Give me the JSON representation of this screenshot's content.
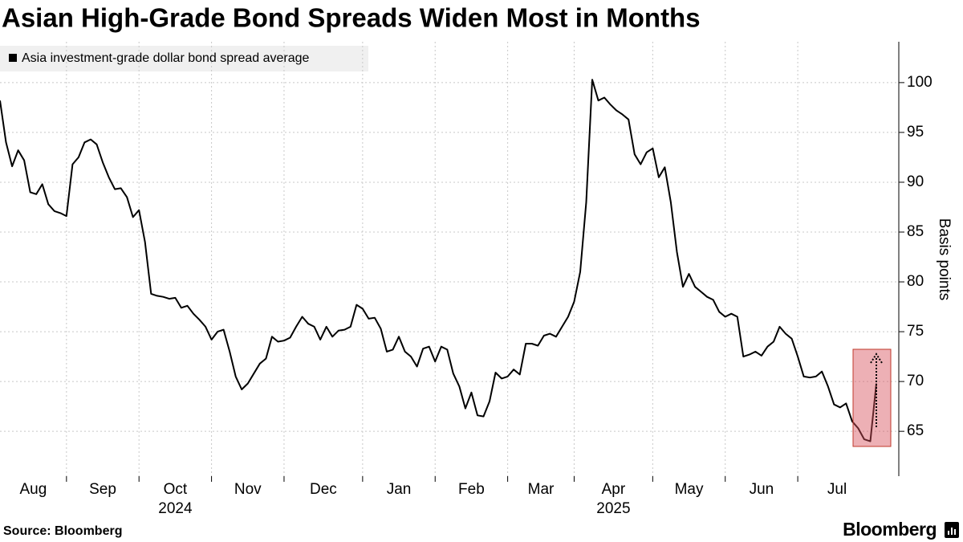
{
  "chart_data": {
    "type": "line",
    "title": "Asian High-Grade Bond Spreads Widen Most in Months",
    "y_axis_label": "Basis points",
    "source": "Source: Bloomberg",
    "brand": "Bloomberg",
    "categories": [
      "Aug",
      null,
      null,
      null,
      null,
      null,
      null,
      null,
      null,
      null,
      null,
      "Sep",
      null,
      null,
      null,
      null,
      null,
      null,
      null,
      null,
      null,
      null,
      null,
      "Oct",
      null,
      null,
      null,
      null,
      null,
      null,
      null,
      null,
      null,
      null,
      null,
      "Nov",
      null,
      null,
      null,
      null,
      null,
      null,
      null,
      null,
      null,
      null,
      null,
      "Dec",
      null,
      null,
      null,
      null,
      null,
      null,
      null,
      null,
      null,
      null,
      null,
      null,
      "Jan",
      null,
      null,
      null,
      null,
      null,
      null,
      null,
      null,
      null,
      null,
      null,
      "Feb",
      null,
      null,
      null,
      null,
      null,
      null,
      null,
      null,
      null,
      null,
      null,
      "Mar",
      null,
      null,
      null,
      null,
      null,
      null,
      null,
      null,
      null,
      null,
      "Apr",
      null,
      null,
      null,
      null,
      null,
      null,
      null,
      null,
      null,
      null,
      null,
      null,
      "May",
      null,
      null,
      null,
      null,
      null,
      null,
      null,
      null,
      null,
      null,
      null,
      "Jun",
      null,
      null,
      null,
      null,
      null,
      null,
      null,
      null,
      null,
      null,
      null,
      "Jul",
      null,
      null,
      null,
      null,
      null,
      null,
      null,
      null,
      null,
      null,
      null,
      null,
      null
    ],
    "x_year_labels": [
      null,
      null,
      null,
      null,
      null,
      null,
      null,
      null,
      null,
      null,
      null,
      null,
      null,
      null,
      null,
      null,
      null,
      null,
      null,
      null,
      null,
      null,
      null,
      "2024",
      null,
      null,
      null,
      null,
      null,
      null,
      null,
      null,
      null,
      null,
      null,
      null,
      null,
      null,
      null,
      null,
      null,
      null,
      null,
      null,
      null,
      null,
      null,
      null,
      null,
      null,
      null,
      null,
      null,
      null,
      null,
      null,
      null,
      null,
      null,
      null,
      null,
      null,
      null,
      null,
      null,
      null,
      null,
      null,
      null,
      null,
      null,
      null,
      null,
      null,
      null,
      null,
      null,
      null,
      null,
      null,
      null,
      null,
      null,
      null,
      null,
      null,
      null,
      null,
      null,
      null,
      null,
      null,
      null,
      null,
      null,
      "2025",
      null,
      null,
      null,
      null,
      null,
      null,
      null,
      null,
      null,
      null,
      null,
      null,
      null,
      null,
      null,
      null,
      null,
      null,
      null,
      null,
      null,
      null,
      null,
      null,
      null,
      null,
      null,
      null,
      null,
      null,
      null,
      null,
      null,
      null,
      null,
      null,
      null,
      null,
      null,
      null,
      null,
      null,
      null,
      null,
      null,
      null,
      null,
      null,
      null,
      null
    ],
    "series": [
      {
        "name": "Asia investment-grade dollar bond spread average",
        "color": "#000000",
        "values": [
          98.2,
          94.0,
          91.6,
          93.2,
          92.2,
          89.0,
          88.8,
          89.8,
          87.8,
          87.1,
          86.9,
          86.6,
          91.8,
          92.5,
          94.0,
          94.3,
          93.8,
          92.0,
          90.5,
          89.3,
          89.4,
          88.5,
          86.5,
          87.2,
          84.0,
          78.8,
          78.6,
          78.5,
          78.3,
          78.4,
          77.4,
          77.6,
          76.8,
          76.2,
          75.5,
          74.2,
          75.0,
          75.2,
          73.0,
          70.5,
          69.2,
          69.8,
          70.8,
          71.8,
          72.3,
          74.5,
          74.0,
          74.1,
          74.4,
          75.5,
          76.5,
          75.8,
          75.5,
          74.2,
          75.5,
          74.5,
          75.1,
          75.2,
          75.5,
          77.7,
          77.3,
          76.3,
          76.4,
          75.3,
          73.0,
          73.2,
          74.5,
          73.0,
          72.5,
          71.5,
          73.3,
          73.5,
          72.0,
          73.5,
          73.2,
          70.8,
          69.5,
          67.3,
          68.9,
          66.6,
          66.5,
          68.0,
          70.9,
          70.3,
          70.5,
          71.2,
          70.7,
          73.8,
          73.8,
          73.6,
          74.6,
          74.8,
          74.5,
          75.5,
          76.5,
          78.0,
          81.0,
          88.0,
          100.3,
          98.2,
          98.5,
          97.8,
          97.2,
          96.8,
          96.3,
          92.8,
          91.8,
          93.0,
          93.4,
          90.5,
          91.5,
          88.0,
          83.0,
          79.5,
          80.8,
          79.5,
          79.0,
          78.5,
          78.2,
          77.0,
          76.5,
          76.8,
          76.5,
          72.5,
          72.7,
          73.0,
          72.6,
          73.5,
          74.0,
          75.5,
          74.8,
          74.3,
          72.5,
          70.5,
          70.4,
          70.5,
          71.0,
          69.5,
          67.7,
          67.4,
          67.8,
          66.0,
          65.3,
          64.2,
          64.0,
          69.8
        ]
      }
    ],
    "ylim": [
      60.5,
      104.1
    ],
    "yticks": [
      65,
      70,
      75,
      80,
      85,
      90,
      95,
      100
    ],
    "grid": true
  }
}
